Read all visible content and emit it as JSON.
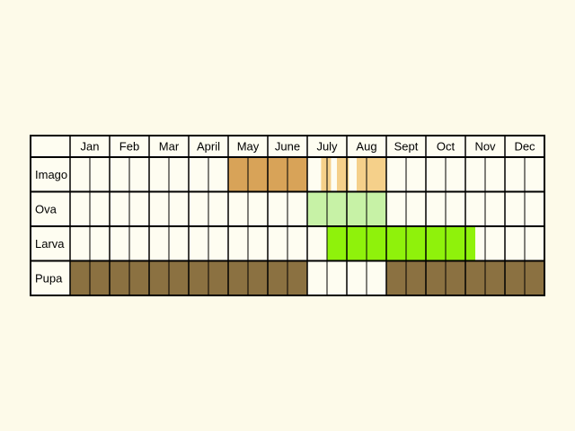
{
  "chart_data": {
    "type": "table",
    "months": [
      "Jan",
      "Feb",
      "Mar",
      "April",
      "May",
      "June",
      "July",
      "Aug",
      "Sept",
      "Oct",
      "Nov",
      "Dec"
    ],
    "rows": [
      {
        "label": "Imago",
        "segments": [
          {
            "start": 8,
            "end": 12,
            "color": "#d8a358"
          },
          {
            "start": 12.7,
            "end": 13.2,
            "color": "#f5d08a"
          },
          {
            "start": 13.5,
            "end": 14.1,
            "color": "#f5d08a"
          },
          {
            "start": 14.5,
            "end": 16,
            "color": "#f5d08a"
          }
        ]
      },
      {
        "label": "Ova",
        "segments": [
          {
            "start": 12,
            "end": 16,
            "color": "#c7f2a6"
          }
        ]
      },
      {
        "label": "Larva",
        "segments": [
          {
            "start": 13,
            "end": 20.5,
            "color": "#8ff20b"
          }
        ]
      },
      {
        "label": "Pupa",
        "segments": [
          {
            "start": 0,
            "end": 12,
            "color": "#8b7141"
          },
          {
            "start": 16,
            "end": 24,
            "color": "#8b7141"
          }
        ]
      }
    ],
    "subdivisions_per_month": 2,
    "colors": {
      "background": "#fdfae9",
      "cell": "#fefdf1",
      "grid": "#000000"
    }
  }
}
